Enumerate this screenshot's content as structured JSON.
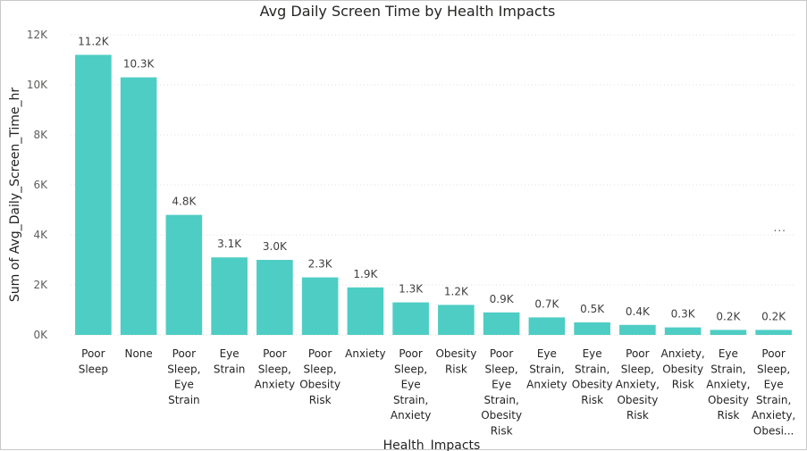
{
  "chart_data": {
    "type": "bar",
    "title": "Avg Daily Screen Time by Health Impacts",
    "xlabel": "Health_Impacts",
    "ylabel": "Sum of Avg_Daily_Screen_Time_hr",
    "ylim": [
      0,
      12000
    ],
    "yticks": [
      0,
      2000,
      4000,
      6000,
      8000,
      10000,
      12000
    ],
    "ytick_labels": [
      "0K",
      "2K",
      "4K",
      "6K",
      "8K",
      "10K",
      "12K"
    ],
    "grid": true,
    "bar_color": "#4ECDC4",
    "categories": [
      "Poor Sleep",
      "None",
      "Poor Sleep, Eye Strain",
      "Eye Strain",
      "Poor Sleep, Anxiety",
      "Poor Sleep, Obesity Risk",
      "Anxiety",
      "Poor Sleep, Eye Strain, Anxiety",
      "Obesity Risk",
      "Poor Sleep, Eye Strain, Obesity Risk",
      "Eye Strain, Anxiety",
      "Eye Strain, Obesity Risk",
      "Poor Sleep, Anxiety, Obesity Risk",
      "Anxiety, Obesity Risk",
      "Eye Strain, Anxiety, Obesity Risk",
      "Poor Sleep, Eye Strain, Anxiety, Obesi..."
    ],
    "category_lines": [
      [
        "Poor",
        "Sleep"
      ],
      [
        "None"
      ],
      [
        "Poor",
        "Sleep,",
        "Eye",
        "Strain"
      ],
      [
        "Eye",
        "Strain"
      ],
      [
        "Poor",
        "Sleep,",
        "Anxiety"
      ],
      [
        "Poor",
        "Sleep,",
        "Obesity",
        "Risk"
      ],
      [
        "Anxiety"
      ],
      [
        "Poor",
        "Sleep,",
        "Eye",
        "Strain,",
        "Anxiety"
      ],
      [
        "Obesity",
        "Risk"
      ],
      [
        "Poor",
        "Sleep,",
        "Eye",
        "Strain,",
        "Obesity",
        "Risk"
      ],
      [
        "Eye",
        "Strain,",
        "Anxiety"
      ],
      [
        "Eye",
        "Strain,",
        "Obesity",
        "Risk"
      ],
      [
        "Poor",
        "Sleep,",
        "Anxiety,",
        "Obesity",
        "Risk"
      ],
      [
        "Anxiety,",
        "Obesity",
        "Risk"
      ],
      [
        "Eye",
        "Strain,",
        "Anxiety,",
        "Obesity",
        "Risk"
      ],
      [
        "Poor",
        "Sleep,",
        "Eye",
        "Strain,",
        "Anxiety,",
        "Obesi..."
      ]
    ],
    "values": [
      11200,
      10300,
      4800,
      3100,
      3000,
      2300,
      1900,
      1300,
      1200,
      900,
      700,
      500,
      400,
      300,
      200,
      200
    ],
    "data_labels": [
      "11.2K",
      "10.3K",
      "4.8K",
      "3.1K",
      "3.0K",
      "2.3K",
      "1.9K",
      "1.3K",
      "1.2K",
      "0.9K",
      "0.7K",
      "0.5K",
      "0.4K",
      "0.3K",
      "0.2K",
      "0.2K"
    ]
  },
  "more_options_label": "..."
}
